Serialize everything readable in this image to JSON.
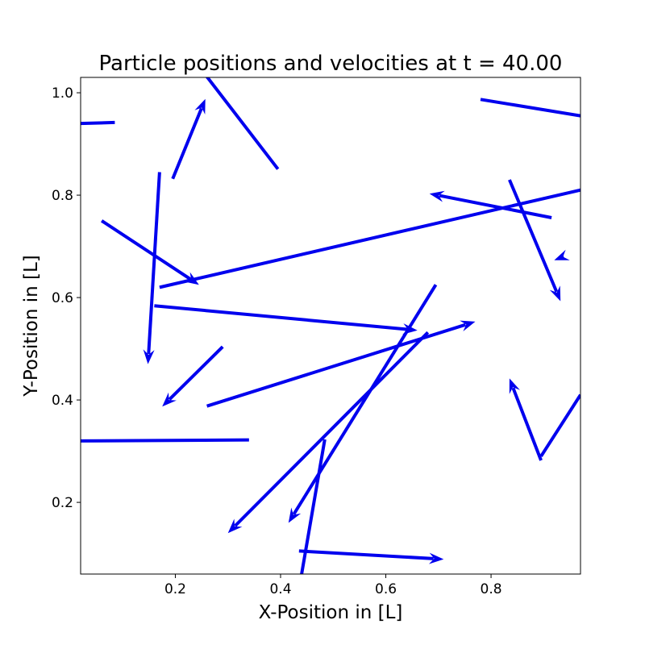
{
  "chart_data": {
    "type": "quiver",
    "title": "Particle positions and velocities at t = 40.00",
    "xlabel": "X-Position in [L]",
    "ylabel": "Y-Position in [L]",
    "xlim": [
      0.02,
      0.97
    ],
    "ylim": [
      0.06,
      1.03
    ],
    "xticks": [
      "0.2",
      "0.4",
      "0.6",
      "0.8"
    ],
    "yticks": [
      "0.2",
      "0.4",
      "0.6",
      "0.8",
      "1.0"
    ],
    "grid": false,
    "color": "#0000ee",
    "arrows": [
      {
        "x": 0.02,
        "y": 0.94,
        "dx": 0.065,
        "dy": 0.002,
        "head": false
      },
      {
        "x": 0.395,
        "y": 0.851,
        "dx": -0.14,
        "dy": 0.187,
        "head": false
      },
      {
        "x": 0.195,
        "y": 0.832,
        "dx": 0.062,
        "dy": 0.156,
        "head": true
      },
      {
        "x": 0.78,
        "y": 0.987,
        "dx": 0.19,
        "dy": -0.032,
        "head": false
      },
      {
        "x": 0.17,
        "y": 0.845,
        "dx": -0.022,
        "dy": -0.375,
        "head": true
      },
      {
        "x": 0.06,
        "y": 0.75,
        "dx": 0.185,
        "dy": -0.125,
        "head": true
      },
      {
        "x": 0.17,
        "y": 0.62,
        "dx": 0.8,
        "dy": 0.19,
        "head": false
      },
      {
        "x": 0.915,
        "y": 0.756,
        "dx": -0.232,
        "dy": 0.047,
        "head": true
      },
      {
        "x": 0.835,
        "y": 0.83,
        "dx": 0.097,
        "dy": -0.237,
        "head": true
      },
      {
        "x": 0.93,
        "y": 0.677,
        "dx": -0.01,
        "dy": -0.004,
        "head": true
      },
      {
        "x": 0.16,
        "y": 0.584,
        "dx": 0.5,
        "dy": -0.048,
        "head": true
      },
      {
        "x": 0.695,
        "y": 0.625,
        "dx": -0.28,
        "dy": -0.465,
        "head": true
      },
      {
        "x": 0.26,
        "y": 0.388,
        "dx": 0.51,
        "dy": 0.165,
        "head": true
      },
      {
        "x": 0.29,
        "y": 0.504,
        "dx": -0.115,
        "dy": -0.117,
        "head": true
      },
      {
        "x": 0.68,
        "y": 0.532,
        "dx": -0.38,
        "dy": -0.392,
        "head": true
      },
      {
        "x": 0.34,
        "y": 0.322,
        "dx": -0.32,
        "dy": -0.002,
        "head": false
      },
      {
        "x": 0.484,
        "y": 0.323,
        "dx": -0.044,
        "dy": -0.263,
        "head": false
      },
      {
        "x": 0.435,
        "y": 0.105,
        "dx": 0.275,
        "dy": -0.016,
        "head": true
      },
      {
        "x": 0.895,
        "y": 0.29,
        "dx": 0.075,
        "dy": 0.12,
        "head": false
      },
      {
        "x": 0.895,
        "y": 0.282,
        "dx": -0.06,
        "dy": 0.16,
        "head": true
      }
    ]
  }
}
